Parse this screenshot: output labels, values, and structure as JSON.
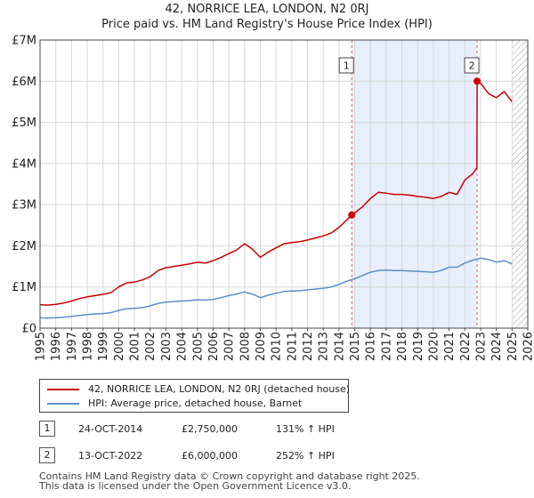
{
  "chart_data": {
    "type": "line",
    "title": "42, NORRICE LEA, LONDON, N2 0RJ",
    "subtitle": "Price paid vs. HM Land Registry's House Price Index (HPI)",
    "xlabel": "",
    "ylabel": "",
    "xlim": [
      1995,
      2026
    ],
    "ylim": [
      0,
      7000000
    ],
    "grid": true,
    "ytick_values": [
      0,
      1000000,
      2000000,
      3000000,
      4000000,
      5000000,
      6000000,
      7000000
    ],
    "ytick_labels": [
      "£0",
      "£1M",
      "£2M",
      "£3M",
      "£4M",
      "£5M",
      "£6M",
      "£7M"
    ],
    "xtick_values": [
      1995,
      1996,
      1997,
      1998,
      1999,
      2000,
      2001,
      2002,
      2003,
      2004,
      2005,
      2006,
      2007,
      2008,
      2009,
      2010,
      2011,
      2012,
      2013,
      2014,
      2015,
      2016,
      2017,
      2018,
      2019,
      2020,
      2021,
      2022,
      2023,
      2024,
      2025,
      2026
    ],
    "xtick_labels": [
      "1995",
      "1996",
      "1997",
      "1998",
      "1999",
      "2000",
      "2001",
      "2002",
      "2003",
      "2004",
      "2005",
      "2006",
      "2007",
      "2008",
      "2009",
      "2010",
      "2011",
      "2012",
      "2013",
      "2014",
      "2015",
      "2016",
      "2017",
      "2018",
      "2019",
      "2020",
      "2021",
      "2022",
      "2023",
      "2024",
      "2025",
      "2026"
    ],
    "shaded_region": {
      "from": 2014.81,
      "to": 2022.78
    },
    "hatched_region": {
      "from": 2025.0,
      "to": 2026.0
    },
    "series": [
      {
        "name": "42, NORRICE LEA, LONDON, N2 0RJ (detached house)",
        "color": "#cc0000",
        "x": [
          1995.0,
          1995.5,
          1996.0,
          1996.5,
          1997.0,
          1997.5,
          1998.0,
          1998.5,
          1999.0,
          1999.5,
          2000.0,
          2000.5,
          2001.0,
          2001.5,
          2002.0,
          2002.5,
          2003.0,
          2003.5,
          2004.0,
          2004.5,
          2005.0,
          2005.5,
          2006.0,
          2006.5,
          2007.0,
          2007.5,
          2008.0,
          2008.5,
          2009.0,
          2009.5,
          2010.0,
          2010.5,
          2011.0,
          2011.5,
          2012.0,
          2012.5,
          2013.0,
          2013.5,
          2014.0,
          2014.5,
          2014.81,
          2015.0,
          2015.5,
          2016.0,
          2016.5,
          2017.0,
          2017.5,
          2018.0,
          2018.5,
          2019.0,
          2019.5,
          2020.0,
          2020.5,
          2021.0,
          2021.5,
          2022.0,
          2022.5,
          2022.77,
          2022.78,
          2023.0,
          2023.5,
          2024.0,
          2024.5,
          2025.0
        ],
        "values": [
          570000,
          560000,
          580000,
          610000,
          660000,
          720000,
          760000,
          790000,
          820000,
          860000,
          1000000,
          1100000,
          1120000,
          1170000,
          1250000,
          1400000,
          1470000,
          1500000,
          1530000,
          1560000,
          1600000,
          1580000,
          1640000,
          1720000,
          1810000,
          1900000,
          2050000,
          1920000,
          1720000,
          1850000,
          1950000,
          2050000,
          2080000,
          2100000,
          2140000,
          2190000,
          2240000,
          2310000,
          2450000,
          2630000,
          2750000,
          2800000,
          2950000,
          3150000,
          3300000,
          3280000,
          3250000,
          3250000,
          3230000,
          3200000,
          3180000,
          3150000,
          3200000,
          3300000,
          3250000,
          3600000,
          3750000,
          3900000,
          6000000,
          5950000,
          5700000,
          5600000,
          5750000,
          5500000
        ]
      },
      {
        "name": "HPI: Average price, detached house, Barnet",
        "color": "#5b8fc9",
        "x": [
          1995.0,
          1995.5,
          1996.0,
          1996.5,
          1997.0,
          1997.5,
          1998.0,
          1998.5,
          1999.0,
          1999.5,
          2000.0,
          2000.5,
          2001.0,
          2001.5,
          2002.0,
          2002.5,
          2003.0,
          2003.5,
          2004.0,
          2004.5,
          2005.0,
          2005.5,
          2006.0,
          2006.5,
          2007.0,
          2007.5,
          2008.0,
          2008.5,
          2009.0,
          2009.5,
          2010.0,
          2010.5,
          2011.0,
          2011.5,
          2012.0,
          2012.5,
          2013.0,
          2013.5,
          2014.0,
          2014.5,
          2015.0,
          2015.5,
          2016.0,
          2016.5,
          2017.0,
          2017.5,
          2018.0,
          2018.5,
          2019.0,
          2019.5,
          2020.0,
          2020.5,
          2021.0,
          2021.5,
          2022.0,
          2022.5,
          2023.0,
          2023.5,
          2024.0,
          2024.5,
          2025.0
        ],
        "values": [
          250000,
          245000,
          252000,
          265000,
          285000,
          310000,
          330000,
          345000,
          355000,
          375000,
          430000,
          470000,
          480000,
          500000,
          540000,
          600000,
          630000,
          645000,
          660000,
          670000,
          690000,
          680000,
          700000,
          740000,
          790000,
          830000,
          880000,
          830000,
          740000,
          800000,
          850000,
          890000,
          900000,
          910000,
          930000,
          950000,
          970000,
          1000000,
          1060000,
          1140000,
          1200000,
          1280000,
          1360000,
          1400000,
          1410000,
          1400000,
          1400000,
          1390000,
          1380000,
          1370000,
          1360000,
          1400000,
          1480000,
          1480000,
          1580000,
          1650000,
          1700000,
          1670000,
          1600000,
          1640000,
          1560000
        ]
      }
    ],
    "annotations": [
      {
        "label": "1",
        "x": 2014.81,
        "value": 2750000
      },
      {
        "label": "2",
        "x": 2022.78,
        "value": 6000000
      }
    ]
  },
  "legend": {
    "items": [
      {
        "label": "42, NORRICE LEA, LONDON, N2 0RJ (detached house)",
        "color": "#cc0000"
      },
      {
        "label": "HPI: Average price, detached house, Barnet",
        "color": "#5b8fc9"
      }
    ]
  },
  "transactions": [
    {
      "badge": "1",
      "date": "24-OCT-2014",
      "price": "£2,750,000",
      "hpi": "131% ↑ HPI"
    },
    {
      "badge": "2",
      "date": "13-OCT-2022",
      "price": "£6,000,000",
      "hpi": "252% ↑ HPI"
    }
  ],
  "footer": {
    "line1": "Contains HM Land Registry data © Crown copyright and database right 2025.",
    "line2": "This data is licensed under the Open Government Licence v3.0."
  }
}
